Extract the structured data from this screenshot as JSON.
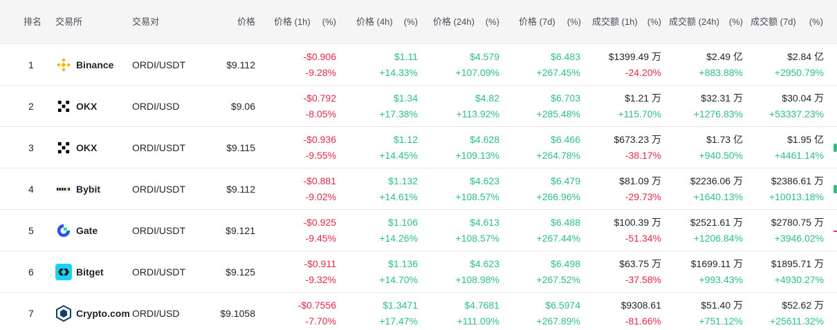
{
  "colors": {
    "up": "#2ebd85",
    "down": "#e0294a",
    "text": "#1e2329",
    "muted": "#474d57",
    "header_bg": "#f5f5f5"
  },
  "header": {
    "rank": "排名",
    "exchange": "交易所",
    "pair": "交易对",
    "price": "价格",
    "price_1h": "价格 (1h)",
    "price_4h": "价格 (4h)",
    "price_24h": "价格 (24h)",
    "price_7d": "价格 (7d)",
    "vol_1h": "成交额 (1h)",
    "vol_24h": "成交额 (24h)",
    "vol_7d": "成交额 (7d)",
    "pct": "(%)"
  },
  "rows": [
    {
      "rank": "1",
      "exchange": "Binance",
      "icon": "binance-logo-icon",
      "pair": "ORDI/USDT",
      "price": "$9.112",
      "p1h": "-$0.906",
      "p1h_pct": "-9.28%",
      "p4h": "$1.11",
      "p4h_pct": "+14.33%",
      "p24h": "$4.579",
      "p24h_pct": "+107.09%",
      "p7d": "$6.483",
      "p7d_pct": "+267.45%",
      "v1h": "$1399.49 万",
      "v1h_pct": "-24.20%",
      "v24h": "$2.49 亿",
      "v24h_pct": "+883.88%",
      "v7d": "$2.84 亿",
      "v7d_pct": "+2950.79%"
    },
    {
      "rank": "2",
      "exchange": "OKX",
      "icon": "okx-logo-icon",
      "pair": "ORDI/USD",
      "price": "$9.06",
      "p1h": "-$0.792",
      "p1h_pct": "-8.05%",
      "p4h": "$1.34",
      "p4h_pct": "+17.38%",
      "p24h": "$4.82",
      "p24h_pct": "+113.92%",
      "p7d": "$6.703",
      "p7d_pct": "+285.48%",
      "v1h": "$1.21 万",
      "v1h_pct": "+115.70%",
      "v24h": "$32.31 万",
      "v24h_pct": "+1276.83%",
      "v7d": "$30.04 万",
      "v7d_pct": "+53337.23%"
    },
    {
      "rank": "3",
      "exchange": "OKX",
      "icon": "okx-logo-icon",
      "pair": "ORDI/USDT",
      "price": "$9.115",
      "p1h": "-$0.936",
      "p1h_pct": "-9.55%",
      "p4h": "$1.12",
      "p4h_pct": "+14.45%",
      "p24h": "$4.628",
      "p24h_pct": "+109.13%",
      "p7d": "$6.466",
      "p7d_pct": "+264.78%",
      "v1h": "$673.23 万",
      "v1h_pct": "-38.17%",
      "v24h": "$1.73 亿",
      "v24h_pct": "+940.50%",
      "v7d": "$1.95 亿",
      "v7d_pct": "+4461.14%"
    },
    {
      "rank": "4",
      "exchange": "Bybit",
      "icon": "bybit-logo-icon",
      "pair": "ORDI/USDT",
      "price": "$9.112",
      "p1h": "-$0.881",
      "p1h_pct": "-9.02%",
      "p4h": "$1.132",
      "p4h_pct": "+14.61%",
      "p24h": "$4.623",
      "p24h_pct": "+108.57%",
      "p7d": "$6.479",
      "p7d_pct": "+266.96%",
      "v1h": "$81.09 万",
      "v1h_pct": "-29.73%",
      "v24h": "$2236.06 万",
      "v24h_pct": "+1640.13%",
      "v7d": "$2386.61 万",
      "v7d_pct": "+10013.18%"
    },
    {
      "rank": "5",
      "exchange": "Gate",
      "icon": "gate-logo-icon",
      "pair": "ORDI/USDT",
      "price": "$9.121",
      "p1h": "-$0.925",
      "p1h_pct": "-9.45%",
      "p4h": "$1.106",
      "p4h_pct": "+14.26%",
      "p24h": "$4.613",
      "p24h_pct": "+108.57%",
      "p7d": "$6.488",
      "p7d_pct": "+267.44%",
      "v1h": "$100.39 万",
      "v1h_pct": "-51.34%",
      "v24h": "$2521.61 万",
      "v24h_pct": "+1206.84%",
      "v7d": "$2780.75 万",
      "v7d_pct": "+3946.02%"
    },
    {
      "rank": "6",
      "exchange": "Bitget",
      "icon": "bitget-logo-icon",
      "pair": "ORDI/USDT",
      "price": "$9.125",
      "p1h": "-$0.911",
      "p1h_pct": "-9.32%",
      "p4h": "$1.136",
      "p4h_pct": "+14.70%",
      "p24h": "$4.623",
      "p24h_pct": "+108.98%",
      "p7d": "$6.498",
      "p7d_pct": "+267.52%",
      "v1h": "$63.75 万",
      "v1h_pct": "-37.58%",
      "v24h": "$1699.11 万",
      "v24h_pct": "+993.43%",
      "v7d": "$1895.71 万",
      "v7d_pct": "+4930.27%"
    },
    {
      "rank": "7",
      "exchange": "Crypto.com",
      "icon": "cryptocom-logo-icon",
      "pair": "ORDI/USD",
      "price": "$9.1058",
      "p1h": "-$0.7556",
      "p1h_pct": "-7.70%",
      "p4h": "$1.3471",
      "p4h_pct": "+17.47%",
      "p24h": "$4.7681",
      "p24h_pct": "+111.09%",
      "p7d": "$6.5974",
      "p7d_pct": "+267.89%",
      "v1h": "$9308.61",
      "v1h_pct": "-81.66%",
      "v24h": "$51.40 万",
      "v24h_pct": "+751.12%",
      "v7d": "$52.62 万",
      "v7d_pct": "+25611.32%"
    }
  ]
}
